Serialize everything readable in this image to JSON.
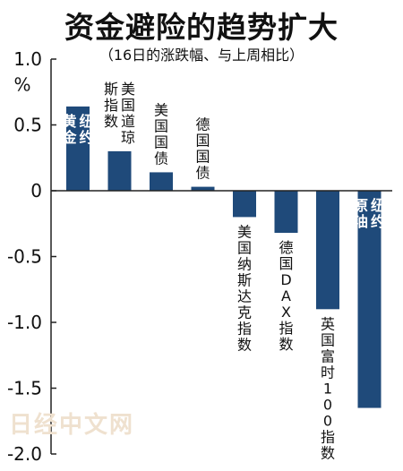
{
  "title": "资金避险的趋势扩大",
  "subtitle": "（16日的涨跌幅、与上周相比）",
  "watermark": "日经中文网",
  "colors": {
    "bar": "#1f4a7a",
    "axis": "#222222",
    "inner_label": "#ffffff",
    "text": "#111111"
  },
  "chart_data": {
    "type": "bar",
    "title": "资金避险的趋势扩大",
    "subtitle": "（16日的涨跌幅、与上周相比）",
    "ylabel": "%",
    "ylim": [
      -2.0,
      1.0
    ],
    "yticks": [
      1.0,
      0.5,
      0,
      -0.5,
      -1.0,
      -1.5,
      -2.0
    ],
    "ytick_labels": [
      "1.0",
      "0.5",
      "0",
      "-0.5",
      "-1.0",
      "-1.5",
      "-2.0"
    ],
    "grid": false,
    "categories": [
      "纽约黄金",
      "美国道琼斯指数",
      "美国国债",
      "德国国债",
      "美国纳斯达克指数",
      "德国DAX指数",
      "英国富时100指数",
      "纽约原油"
    ],
    "values": [
      0.64,
      0.3,
      0.14,
      0.03,
      -0.2,
      -0.32,
      -0.9,
      -1.65
    ],
    "label_lines": [
      [
        "纽约",
        "黄金"
      ],
      [
        "美国道琼",
        "斯指数"
      ],
      [
        "美国国债"
      ],
      [
        "德国国债"
      ],
      [
        "美国纳斯达克指数"
      ],
      [
        "德国DAX指数"
      ],
      [
        "英国富时100指数"
      ],
      [
        "纽约",
        "原油"
      ]
    ],
    "label_inside": [
      true,
      false,
      false,
      false,
      false,
      false,
      false,
      true
    ]
  }
}
